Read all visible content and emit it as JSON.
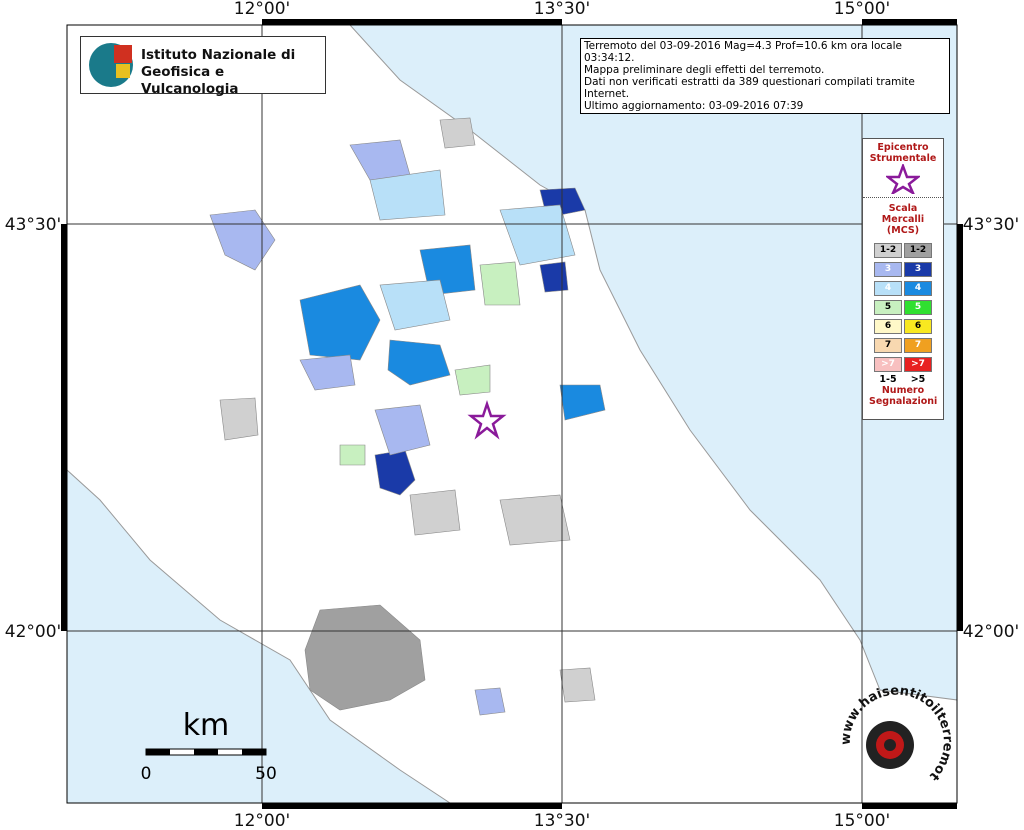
{
  "map": {
    "grid_labels": {
      "top": [
        "12°00'",
        "13°30'",
        "15°00'"
      ],
      "bottom": [
        "12°00'",
        "13°30'",
        "15°00'"
      ],
      "left": [
        "43°30'",
        "42°00'"
      ],
      "right": [
        "43°30'",
        "42°00'"
      ]
    },
    "logo": {
      "line1": "Istituto Nazionale di",
      "line2": "Geofisica e Vulcanologia"
    },
    "info": [
      "Terremoto del 03-09-2016 Mag=4.3 Prof=10.6 km ora locale 03:34:12.",
      "Mappa preliminare degli effetti del terremoto.",
      "Dati non verificati estratti da 389 questionari compilati tramite Internet.",
      "Ultimo aggiornamento: 03-09-2016 07:39"
    ],
    "legend": {
      "epicenter": "Epicentro Strumentale",
      "scale_title": "Scala Mercalli (MCS)",
      "classes": [
        [
          "1-2",
          "1-2"
        ],
        [
          "3",
          "3"
        ],
        [
          "4",
          "4"
        ],
        [
          "5",
          "5"
        ],
        [
          "6",
          "6"
        ],
        [
          "7",
          "7"
        ],
        [
          ">7",
          ">7"
        ]
      ],
      "count_labels": [
        "1-5",
        ">5"
      ],
      "count_title": "Numero Segnalazioni"
    },
    "scale_bar": {
      "unit": "km",
      "labels": [
        "0",
        "50"
      ]
    },
    "badge": "www.haisentitoilterremoto.it"
  }
}
